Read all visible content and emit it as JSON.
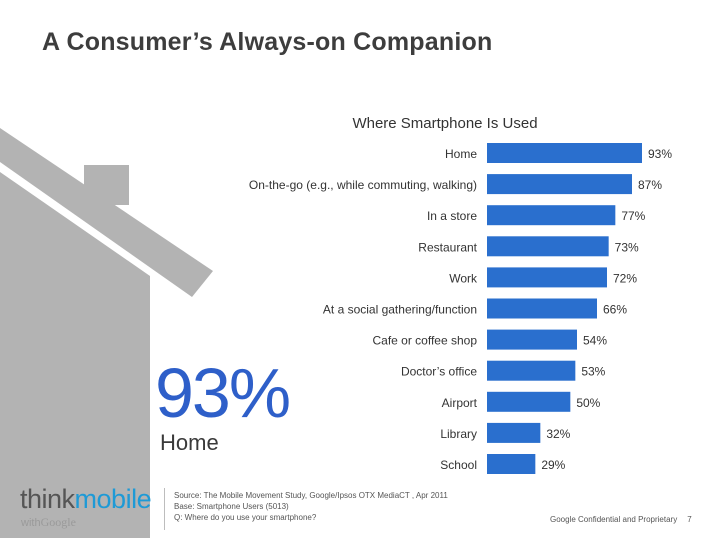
{
  "slide": {
    "title": "A Consumer’s Always-on Companion"
  },
  "highlight": {
    "value": "93%",
    "label": "Home"
  },
  "logo": {
    "think": "think",
    "mobile": "mobile",
    "with": "with",
    "google": "Google"
  },
  "source": {
    "line1": "Source: The Mobile Movement Study, Google/Ipsos OTX MediaCT , Apr 2011",
    "line2": "Base:   Smartphone Users (5013)",
    "line3": "Q: Where do you use your smartphone?"
  },
  "footer": {
    "confidential": "Google Confidential and Proprietary",
    "page_number": "7"
  },
  "colors": {
    "bar": "#2a6fce",
    "accent_text": "#2e5fc9",
    "house": "#b3b3b3"
  },
  "chart_data": {
    "type": "bar",
    "orientation": "horizontal",
    "title": "Where Smartphone Is Used",
    "categories": [
      "Home",
      "On-the-go (e.g., while commuting, walking)",
      "In a store",
      "Restaurant",
      "Work",
      "At a social gathering/function",
      "Cafe or coffee shop",
      "Doctor’s office",
      "Airport",
      "Library",
      "School"
    ],
    "values": [
      93,
      87,
      77,
      73,
      72,
      66,
      54,
      53,
      50,
      32,
      29
    ],
    "value_labels": [
      "93%",
      "87%",
      "77%",
      "73%",
      "72%",
      "66%",
      "54%",
      "53%",
      "50%",
      "32%",
      "29%"
    ],
    "unit": "%",
    "xlim": [
      0,
      100
    ],
    "grid": false,
    "legend": "none"
  }
}
